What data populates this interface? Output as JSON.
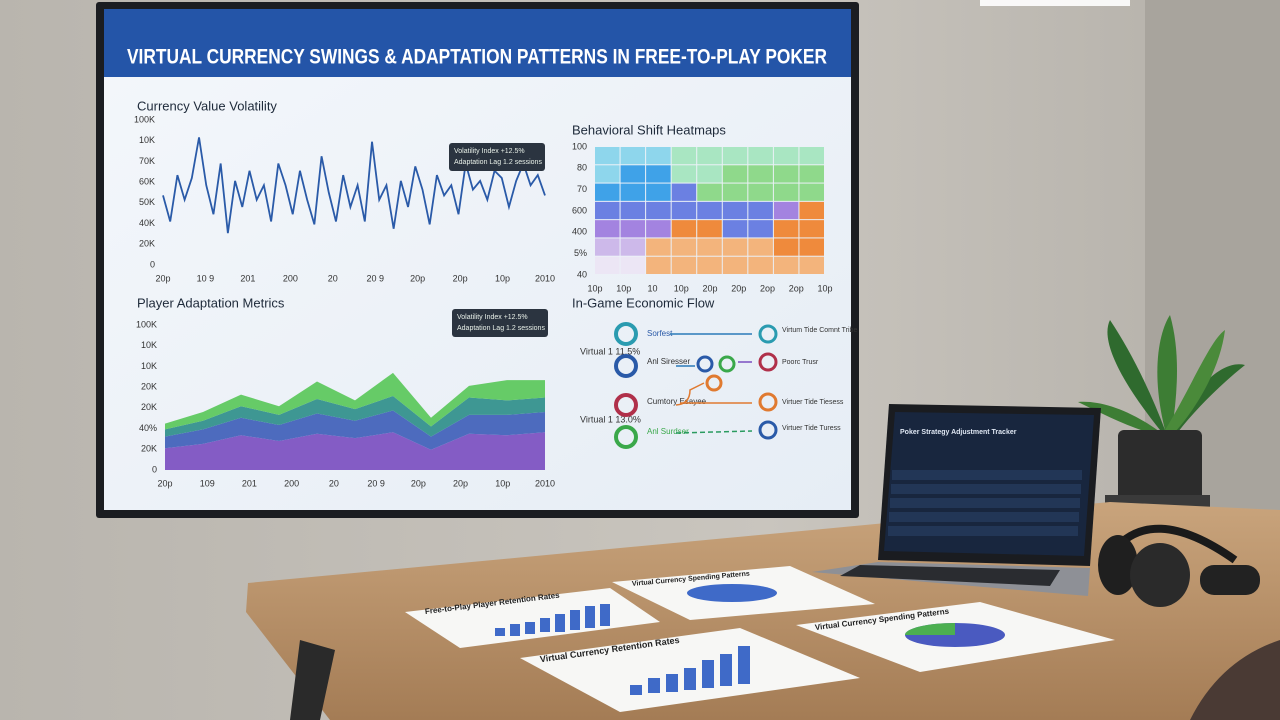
{
  "screen_title": "VIRTUAL CURRENCY SWINGS & ADAPTATION PATTERNS IN FREE-TO-PLAY POKER",
  "chart_data": [
    {
      "type": "line",
      "title": "Currency Value Volatility",
      "color": "#2a5aa8",
      "ylim": [
        0,
        100
      ],
      "y_labels": [
        "100K",
        "10K",
        "70K",
        "60K",
        "50K",
        "40K",
        "20K",
        "0"
      ],
      "x_labels": [
        "20p",
        "10 9",
        "201",
        "200",
        "20",
        "20 9",
        "20p",
        "20p",
        "10p",
        "2010"
      ],
      "values": [
        48,
        30,
        62,
        45,
        60,
        88,
        55,
        35,
        70,
        22,
        58,
        40,
        65,
        45,
        55,
        30,
        70,
        55,
        35,
        65,
        45,
        28,
        75,
        50,
        30,
        62,
        40,
        55,
        30,
        85,
        45,
        55,
        25,
        58,
        40,
        68,
        52,
        28,
        62,
        48,
        55,
        35,
        70,
        52,
        58,
        45,
        65,
        60,
        40,
        58,
        70,
        55,
        62,
        48
      ],
      "annotation": [
        "Volatility Index +12.5%",
        "Adaptation Lag 1.2 sessions"
      ]
    },
    {
      "type": "heatmap",
      "title": "Behavioral Shift Heatmaps",
      "y_labels": [
        "100",
        "80",
        "70",
        "600",
        "400",
        "5%",
        "40"
      ],
      "x_labels": [
        "10p",
        "10p",
        "10",
        "10p",
        "20p",
        "20p",
        "2op",
        "2op",
        "10p"
      ],
      "color_range": [
        0,
        9
      ],
      "colorscale": [
        "#ece6f5",
        "#cdb9ea",
        "#a383e0",
        "#6b80e2",
        "#3fa2e8",
        "#8ed6ec",
        "#a9e6c2",
        "#8fd98b",
        "#f3b47c",
        "#ef8a3c"
      ],
      "cells": [
        [
          5,
          5,
          5,
          6,
          6,
          6,
          6,
          6,
          6
        ],
        [
          5,
          4,
          4,
          6,
          6,
          7,
          7,
          7,
          7
        ],
        [
          4,
          4,
          4,
          3,
          7,
          7,
          7,
          7,
          7
        ],
        [
          3,
          3,
          3,
          3,
          3,
          3,
          3,
          2,
          9
        ],
        [
          2,
          2,
          2,
          9,
          9,
          3,
          3,
          9,
          9
        ],
        [
          1,
          1,
          8,
          8,
          8,
          8,
          8,
          9,
          9
        ],
        [
          0,
          0,
          8,
          8,
          8,
          8,
          8,
          8,
          8
        ]
      ]
    },
    {
      "type": "area",
      "title": "Player Adaptation Metrics",
      "ylim": [
        0,
        100
      ],
      "y_labels": [
        "100K",
        "10K",
        "10K",
        "20K",
        "20K",
        "40%",
        "20K",
        "0"
      ],
      "x_labels": [
        "20p",
        "109",
        "201",
        "200",
        "20",
        "20 9",
        "20p",
        "20p",
        "10p",
        "2010"
      ],
      "series": [
        {
          "name": "Purple",
          "color": "#7b4fc0",
          "values": [
            15,
            18,
            24,
            20,
            25,
            22,
            26,
            14,
            25,
            24,
            26
          ]
        },
        {
          "name": "Blue",
          "color": "#3f5fb8",
          "values": [
            8,
            10,
            12,
            11,
            14,
            12,
            15,
            9,
            13,
            14,
            14
          ]
        },
        {
          "name": "Teal",
          "color": "#2f8f8a",
          "values": [
            5,
            6,
            8,
            7,
            10,
            8,
            10,
            7,
            12,
            10,
            10
          ]
        },
        {
          "name": "Green",
          "color": "#5ac85a",
          "values": [
            4,
            6,
            8,
            6,
            12,
            6,
            16,
            6,
            8,
            14,
            12
          ]
        }
      ],
      "annotation": [
        "Volatility Index +12.5%",
        "Adaptation Lag 1.2 sessions"
      ]
    }
  ],
  "flow": {
    "title": "In-Game Economic Flow",
    "left": [
      "Virtual 1 11.5%",
      "Virtual 1 13.0%"
    ],
    "sources": [
      "Sorfest",
      "Anl Siresser",
      "Cumtory Esayee",
      "Anl Surdser"
    ],
    "targets": [
      "Virtum Tide Comnt Tribe",
      "Poorc Trusr",
      "Virtuer Tide Tiesess",
      "Virtuer Tide Turess"
    ]
  },
  "laptop": {
    "title": "Poker Strategy Adjustment Tracker"
  },
  "papers": [
    "Free-to-Play Player Retention Rates",
    "Virtual Currency Spending Patterns",
    "Virtual Currency Retention Rates",
    "Virtual Currency Spending Patterns"
  ]
}
